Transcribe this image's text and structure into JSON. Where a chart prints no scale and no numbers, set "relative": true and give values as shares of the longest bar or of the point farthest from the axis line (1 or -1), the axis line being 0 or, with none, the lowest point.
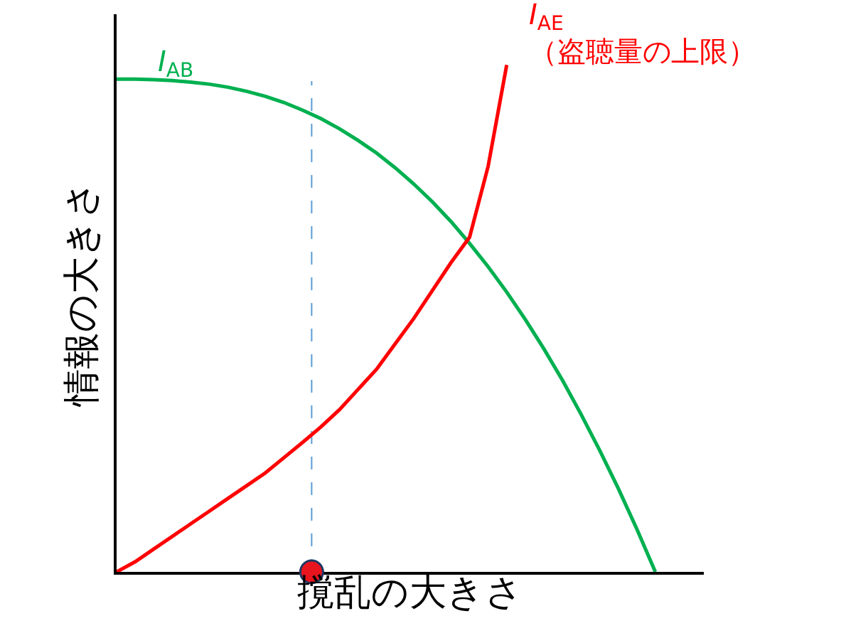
{
  "chart_data": {
    "type": "line",
    "relative": true,
    "xlabel": "撹乱の大きさ",
    "ylabel": "情報の大きさ",
    "legend": false,
    "tick_labels": false,
    "marker": "none",
    "line_style": "solid",
    "categories": [
      null,
      null,
      null,
      null,
      null,
      null,
      null,
      null,
      null,
      null,
      null,
      null,
      null,
      null,
      null,
      null,
      null,
      null,
      null,
      null,
      null,
      null,
      null,
      null,
      null,
      null,
      null,
      null,
      null,
      null
    ],
    "series": [
      {
        "name": "I$_{AB}$",
        "color": "#00b050",
        "values": [
          0.972,
          0.972,
          0.971,
          0.969,
          0.966,
          0.962,
          0.956,
          0.948,
          0.938,
          0.926,
          0.911,
          0.894,
          0.874,
          0.851,
          0.826,
          0.797,
          0.765,
          0.73,
          0.691,
          0.648,
          0.602,
          0.552,
          0.498,
          0.44,
          0.378,
          0.311,
          0.24,
          0.165,
          0.085,
          0
        ]
      },
      {
        "name": "I$_{AE}$\n（盗聴量の上限）",
        "color": "#ff0000",
        "values": [
          0,
          0.02,
          0.045,
          0.07,
          0.095,
          0.12,
          0.145,
          0.17,
          0.195,
          0.225,
          0.255,
          0.286,
          0.32,
          0.36,
          0.4,
          0.45,
          0.5,
          0.555,
          0.61,
          0.66,
          0.8,
          1.0,
          null,
          null,
          null,
          null,
          null,
          null,
          null,
          null
        ]
      }
    ]
  }
}
